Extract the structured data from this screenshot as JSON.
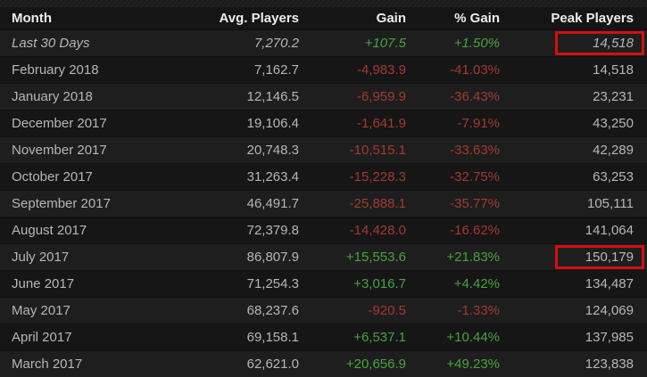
{
  "colors": {
    "positive_text": "#47a33c",
    "negative_text": "#a03b2e",
    "highlight_border": "#d40f0f",
    "row_odd_bg": "#1e1e1e",
    "row_even_bg": "#161616",
    "header_bg": "#151515"
  },
  "table": {
    "columns": [
      "Month",
      "Avg. Players",
      "Gain",
      "% Gain",
      "Peak Players"
    ],
    "rows": [
      {
        "month": "Last 30 Days",
        "avg": "7,270.2",
        "gain": "+107.5",
        "pct": "+1.50%",
        "peak": "14,518",
        "trend": "up",
        "peak_highlighted": true
      },
      {
        "month": "February 2018",
        "avg": "7,162.7",
        "gain": "-4,983.9",
        "pct": "-41.03%",
        "peak": "14,518",
        "trend": "down",
        "peak_highlighted": false
      },
      {
        "month": "January 2018",
        "avg": "12,146.5",
        "gain": "-6,959.9",
        "pct": "-36.43%",
        "peak": "23,231",
        "trend": "down",
        "peak_highlighted": false
      },
      {
        "month": "December 2017",
        "avg": "19,106.4",
        "gain": "-1,641.9",
        "pct": "-7.91%",
        "peak": "43,250",
        "trend": "down",
        "peak_highlighted": false
      },
      {
        "month": "November 2017",
        "avg": "20,748.3",
        "gain": "-10,515.1",
        "pct": "-33.63%",
        "peak": "42,289",
        "trend": "down",
        "peak_highlighted": false
      },
      {
        "month": "October 2017",
        "avg": "31,263.4",
        "gain": "-15,228.3",
        "pct": "-32.75%",
        "peak": "63,253",
        "trend": "down",
        "peak_highlighted": false
      },
      {
        "month": "September 2017",
        "avg": "46,491.7",
        "gain": "-25,888.1",
        "pct": "-35.77%",
        "peak": "105,111",
        "trend": "down",
        "peak_highlighted": false
      },
      {
        "month": "August 2017",
        "avg": "72,379.8",
        "gain": "-14,428.0",
        "pct": "-16.62%",
        "peak": "141,064",
        "trend": "down",
        "peak_highlighted": false
      },
      {
        "month": "July 2017",
        "avg": "86,807.9",
        "gain": "+15,553.6",
        "pct": "+21.83%",
        "peak": "150,179",
        "trend": "up",
        "peak_highlighted": true
      },
      {
        "month": "June 2017",
        "avg": "71,254.3",
        "gain": "+3,016.7",
        "pct": "+4.42%",
        "peak": "134,487",
        "trend": "up",
        "peak_highlighted": false
      },
      {
        "month": "May 2017",
        "avg": "68,237.6",
        "gain": "-920.5",
        "pct": "-1.33%",
        "peak": "124,069",
        "trend": "down",
        "peak_highlighted": false
      },
      {
        "month": "April 2017",
        "avg": "69,158.1",
        "gain": "+6,537.1",
        "pct": "+10.44%",
        "peak": "137,985",
        "trend": "up",
        "peak_highlighted": false
      },
      {
        "month": "March 2017",
        "avg": "62,621.0",
        "gain": "+20,656.9",
        "pct": "+49.23%",
        "peak": "123,838",
        "trend": "up",
        "peak_highlighted": false
      }
    ]
  }
}
